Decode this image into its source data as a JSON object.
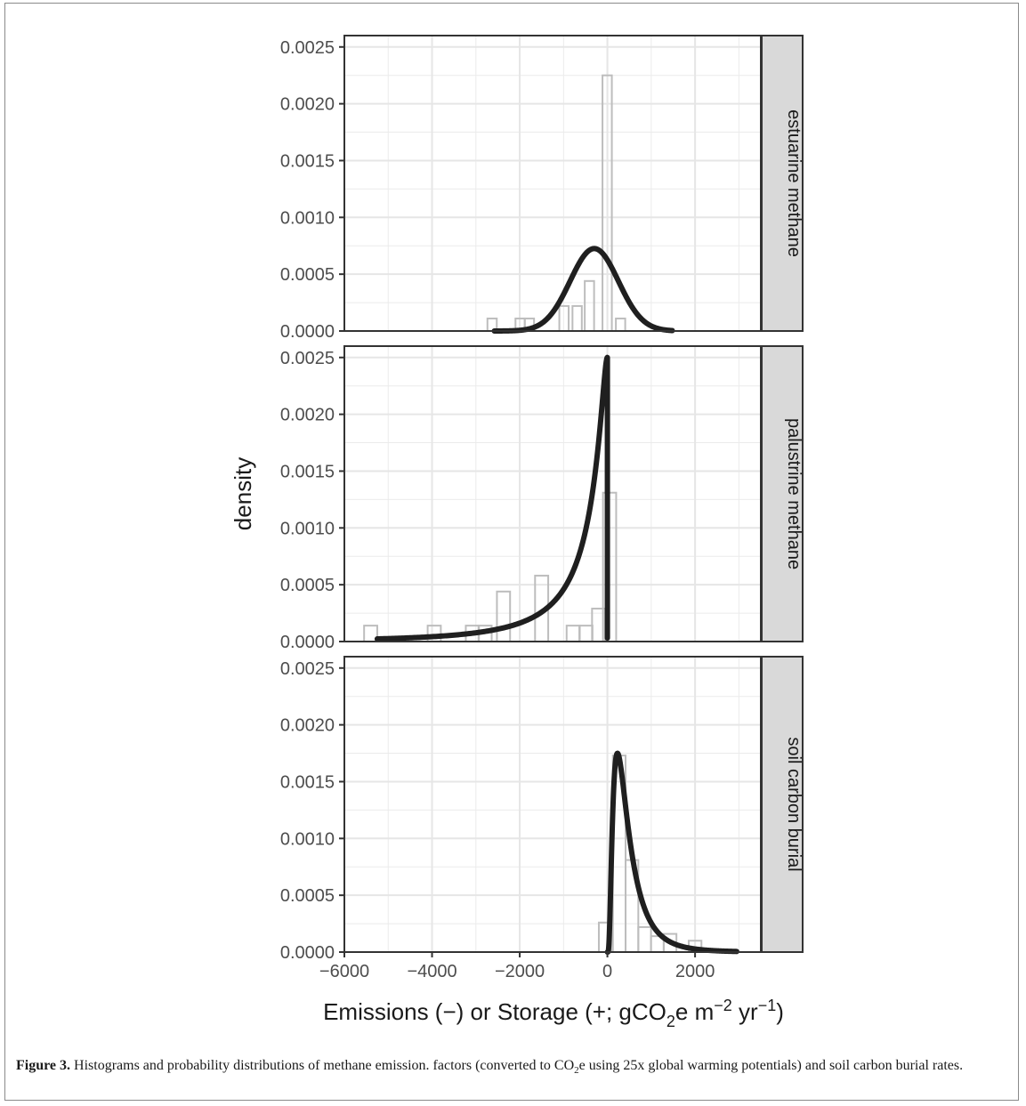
{
  "chart_data": {
    "type": "histogram",
    "ylabel": "density",
    "xlabel_parts": [
      "Emissions (−) or Storage (+; gCO",
      "2",
      "e m",
      "−2",
      " yr",
      "−1",
      ")"
    ],
    "x_range": [
      -6000,
      3500
    ],
    "y_range": [
      0,
      0.0026
    ],
    "x_ticks": [
      -6000,
      -4000,
      -2000,
      0,
      2000
    ],
    "x_tick_labels": [
      "−6000",
      "−4000",
      "−2000",
      "0",
      "2000"
    ],
    "y_ticks": [
      0,
      0.0005,
      0.001,
      0.0015,
      0.002,
      0.0025
    ],
    "y_tick_labels": [
      "0.0000",
      "0.0005",
      "0.0010",
      "0.0015",
      "0.0020",
      "0.0025"
    ],
    "grid": true,
    "colors": {
      "bar_stroke": "#bdbdbd",
      "curve": "#1f1f1f",
      "strip_fill": "#d9d9d9",
      "grid": "#ebebeb",
      "panel_border": "#333333"
    },
    "facets": [
      {
        "label": "estuarine methane",
        "histogram": {
          "bin_width": 213,
          "bins": [
            {
              "x": -2630,
              "density": 0.00011
            },
            {
              "x": -1990,
              "density": 0.00011
            },
            {
              "x": -1780,
              "density": 0.00011
            },
            {
              "x": -990,
              "density": 0.00022
            },
            {
              "x": -690,
              "density": 0.00022
            },
            {
              "x": -410,
              "density": 0.00044
            },
            {
              "x": -5,
              "density": 0.00225
            },
            {
              "x": 300,
              "density": 0.00011
            }
          ],
          "baseline_range": [
            -5550,
            2900
          ]
        },
        "curve": {
          "kind": "normal",
          "mean": -300,
          "sd": 550,
          "x_range": [
            -2580,
            1480
          ]
        }
      },
      {
        "label": "palustrine methane",
        "histogram": {
          "bin_width": 300,
          "bins": [
            {
              "x": -5400,
              "density": 0.00014
            },
            {
              "x": -3950,
              "density": 0.00014
            },
            {
              "x": -3080,
              "density": 0.00014
            },
            {
              "x": -2790,
              "density": 0.00014
            },
            {
              "x": -2370,
              "density": 0.00044
            },
            {
              "x": -1500,
              "density": 0.00058
            },
            {
              "x": -780,
              "density": 0.00014
            },
            {
              "x": -490,
              "density": 0.00014
            },
            {
              "x": -200,
              "density": 0.00029
            },
            {
              "x": 50,
              "density": 0.00131
            }
          ],
          "baseline_range": [
            -5550,
            2900
          ]
        },
        "curve": {
          "kind": "reflected-lognormal",
          "peak_x": 0,
          "peak_density": 0.0025,
          "x_range": [
            -5250,
            0
          ]
        }
      },
      {
        "label": "soil carbon burial",
        "histogram": {
          "bin_width": 290,
          "bins": [
            {
              "x": -50,
              "density": 0.00026
            },
            {
              "x": 270,
              "density": 0.00173
            },
            {
              "x": 560,
              "density": 0.00081
            },
            {
              "x": 850,
              "density": 0.00022
            },
            {
              "x": 1140,
              "density": 0.00014
            },
            {
              "x": 1430,
              "density": 0.00016
            },
            {
              "x": 2000,
              "density": 0.0001
            }
          ],
          "baseline_range": [
            -5550,
            2900
          ]
        },
        "curve": {
          "kind": "lognormal",
          "peak_x": 230,
          "peak_density": 0.00175,
          "x_range": [
            0,
            2950
          ]
        }
      }
    ]
  },
  "caption": {
    "label": "Figure 3.",
    "text_before_sub": " Histograms and probability distributions of methane emission. factors (converted to CO",
    "sub": "2",
    "text_after_sub": "e using 25x global warming potentials) and soil carbon burial rates."
  }
}
